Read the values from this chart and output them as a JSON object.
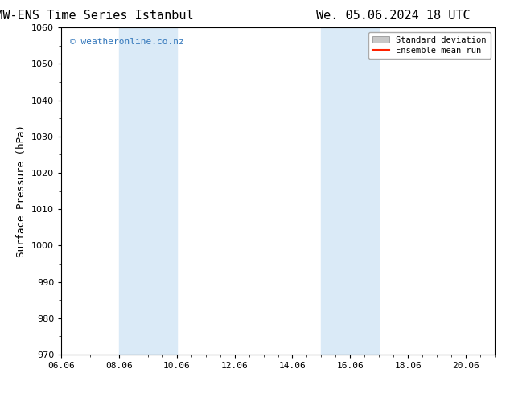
{
  "title_left": "ECMW-ENS Time Series Istanbul",
  "title_right": "We. 05.06.2024 18 UTC",
  "ylabel": "Surface Pressure (hPa)",
  "ylim": [
    970,
    1060
  ],
  "yticks": [
    970,
    980,
    990,
    1000,
    1010,
    1020,
    1030,
    1040,
    1050,
    1060
  ],
  "xlim_start": 6.06,
  "xlim_end": 21.06,
  "xtick_labels": [
    "06.06",
    "08.06",
    "10.06",
    "12.06",
    "14.06",
    "16.06",
    "18.06",
    "20.06"
  ],
  "xtick_positions": [
    6.06,
    8.06,
    10.06,
    12.06,
    14.06,
    16.06,
    18.06,
    20.06
  ],
  "shaded_bands": [
    {
      "xmin": 8.06,
      "xmax": 10.06
    },
    {
      "xmin": 15.06,
      "xmax": 17.06
    }
  ],
  "shaded_color": "#daeaf7",
  "watermark_text": "© weatheronline.co.nz",
  "watermark_color": "#3377bb",
  "bg_color": "#ffffff",
  "title_fontsize": 11,
  "axis_label_fontsize": 9,
  "tick_fontsize": 8,
  "legend_std_color": "#c8c8c8",
  "legend_mean_color": "#ff2200"
}
